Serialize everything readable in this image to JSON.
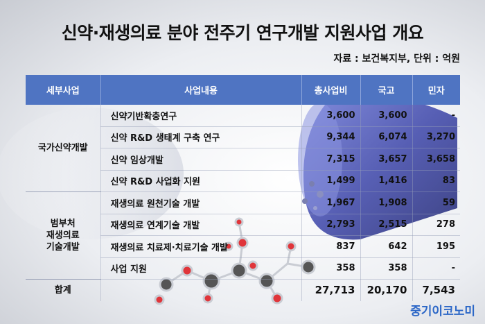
{
  "title": "신약·재생의료 분야 전주기 연구개발 지원사업 개요",
  "source": "자료 : 보건복지부, 단위 : 억원",
  "table": {
    "headers": [
      "세부사업",
      "사업내용",
      "총사업비",
      "국고",
      "민자"
    ],
    "groups": [
      {
        "category": "국가신약개발",
        "rows": [
          {
            "item": "신약기반확충연구",
            "total": "3,600",
            "gov": "3,600",
            "private": "-"
          },
          {
            "item": "신약 R&D 생태계 구축 연구",
            "total": "9,344",
            "gov": "6,074",
            "private": "3,270"
          },
          {
            "item": "신약 임상개발",
            "total": "7,315",
            "gov": "3,657",
            "private": "3,658"
          },
          {
            "item": "신약 R&D 사업화 지원",
            "total": "1,499",
            "gov": "1,416",
            "private": "83"
          }
        ]
      },
      {
        "category_lines": [
          "범부처",
          "재생의료",
          "기술개발"
        ],
        "rows": [
          {
            "item": "재생의료 원천기술 개발",
            "total": "1,967",
            "gov": "1,908",
            "private": "59"
          },
          {
            "item": "재생의료 연계기술 개발",
            "total": "2,793",
            "gov": "2,515",
            "private": "278"
          },
          {
            "item": "재생의료 치료제·치료기술 개발",
            "total": "837",
            "gov": "642",
            "private": "195"
          },
          {
            "item": "사업 지원",
            "total": "358",
            "gov": "358",
            "private": "-"
          }
        ]
      }
    ],
    "total": {
      "label": "합계",
      "total": "27,713",
      "gov": "20,170",
      "private": "7,543"
    }
  },
  "brand": "중기이코노미",
  "colors": {
    "header_bg": "#4f74c2",
    "brand": "#2c67c7",
    "capsule_blue": "#3b44a8",
    "molecule_red": "#e0353a",
    "molecule_gray": "#555555"
  }
}
